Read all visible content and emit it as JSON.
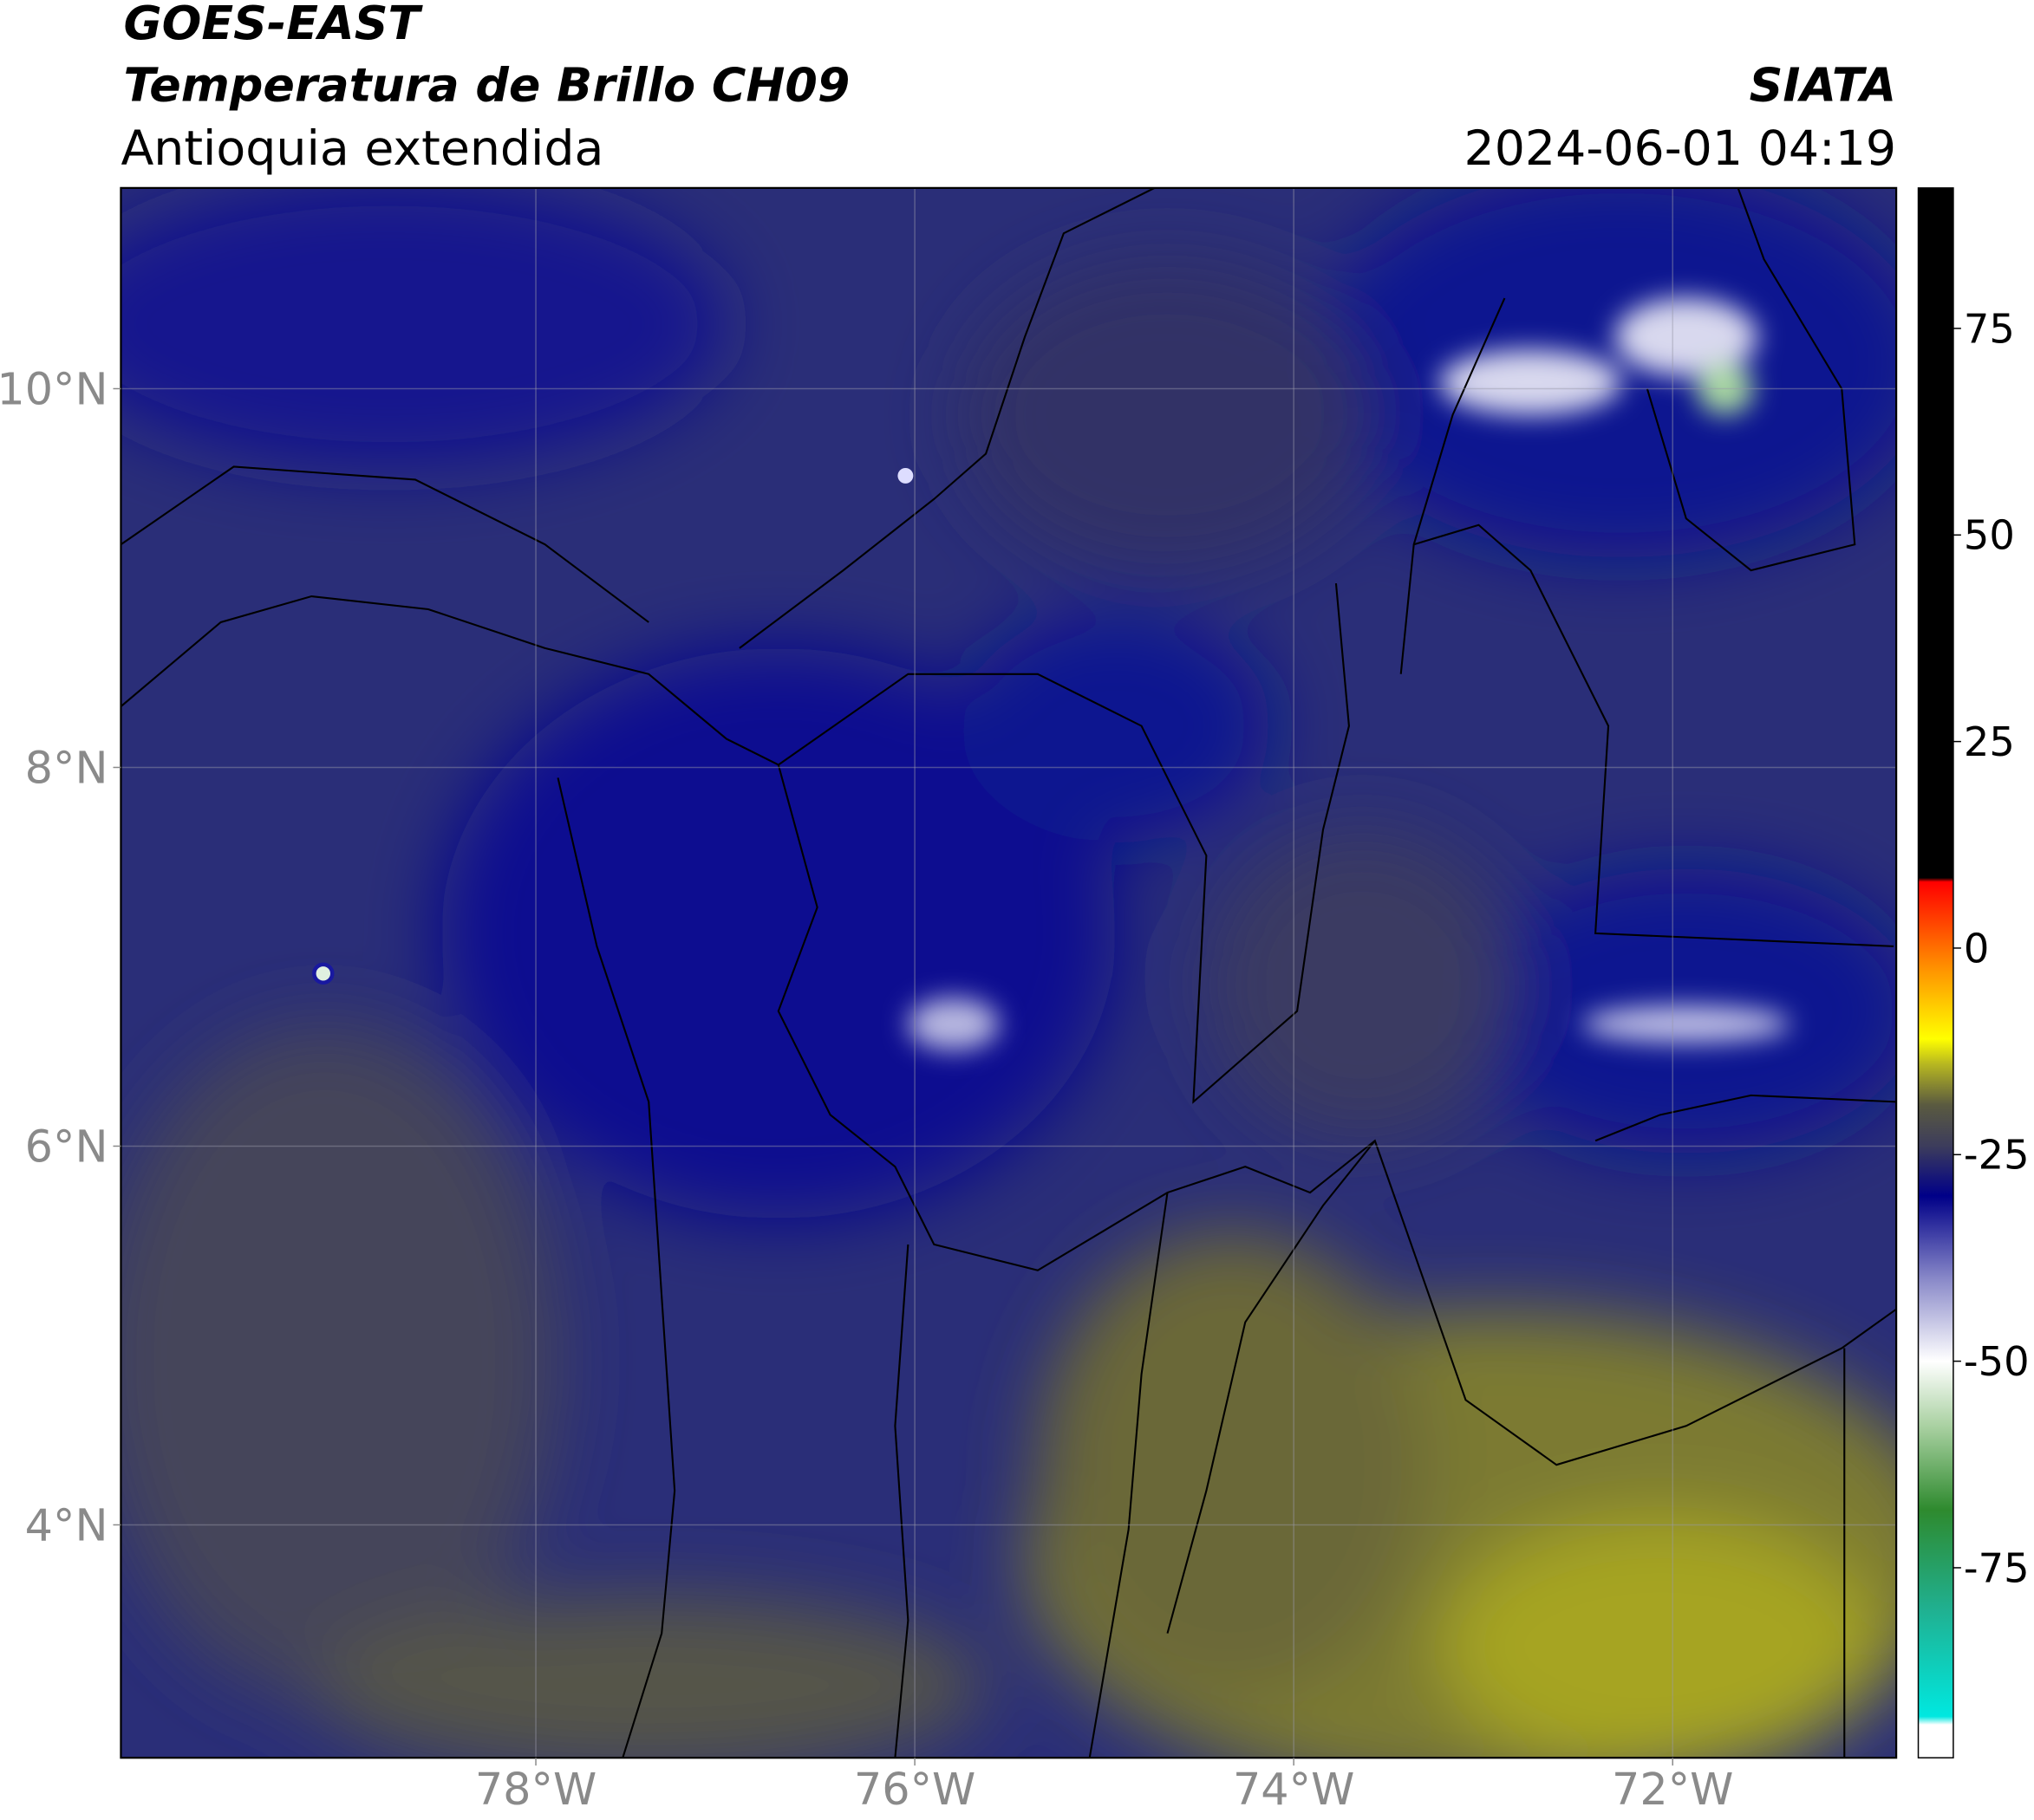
{
  "header": {
    "satellite": "GOES-EAST",
    "product": "Temperatura de Brillo CH09",
    "region": "Antioquia extendida",
    "institution": "SIATA",
    "datetime": "2024-06-01 04:19"
  },
  "map": {
    "xlim": [
      -80.19,
      -70.82
    ],
    "ylim": [
      2.77,
      11.06
    ],
    "xticks": [
      {
        "value": -78,
        "label": "78°W"
      },
      {
        "value": -76,
        "label": "76°W"
      },
      {
        "value": -74,
        "label": "74°W"
      },
      {
        "value": -72,
        "label": "72°W"
      }
    ],
    "yticks": [
      {
        "value": 4,
        "label": "4°N"
      },
      {
        "value": 6,
        "label": "6°N"
      },
      {
        "value": 8,
        "label": "8°N"
      },
      {
        "value": 10,
        "label": "10°N"
      }
    ],
    "grid": true
  },
  "colorbar": {
    "lim": [
      -98,
      92
    ],
    "ticks": [
      -75,
      -50,
      -25,
      0,
      25,
      50,
      75
    ],
    "colors": [
      {
        "value": -98,
        "color": "#ffffff"
      },
      {
        "value": -94,
        "color": "#ffffff"
      },
      {
        "value": -93,
        "color": "#00e8e0"
      },
      {
        "value": -80,
        "color": "#20b090"
      },
      {
        "value": -68,
        "color": "#2e8a2e"
      },
      {
        "value": -58,
        "color": "#a8d0a0"
      },
      {
        "value": -50,
        "color": "#ffffff"
      },
      {
        "value": -40,
        "color": "#8888c8"
      },
      {
        "value": -30,
        "color": "#000088"
      },
      {
        "value": -24,
        "color": "#3c3c5c"
      },
      {
        "value": -19,
        "color": "#5a5a40"
      },
      {
        "value": -14,
        "color": "#b8b820"
      },
      {
        "value": -11,
        "color": "#ffff00"
      },
      {
        "value": -3,
        "color": "#ff9900"
      },
      {
        "value": 8,
        "color": "#ff0000"
      },
      {
        "value": 8.5,
        "color": "#000000"
      },
      {
        "value": 92,
        "color": "#000000"
      }
    ]
  }
}
